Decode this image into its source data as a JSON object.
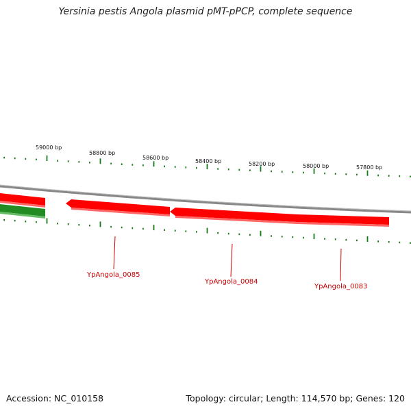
{
  "title": "Yersinia pestis Angola plasmid pMT-pPCP, complete sequence",
  "footer": {
    "accession": "Accession: NC_010158",
    "summary": "Topology: circular; Length: 114,570 bp; Genes: 120"
  },
  "colors": {
    "forward_strand": "#ff0000",
    "reverse_strand": "#228b22",
    "backbone": "#888888",
    "ticks": "#1a7a1a",
    "gene_label": "#cc0000"
  },
  "ruler_labels": [
    "59000 bp",
    "58800 bp",
    "58600 bp",
    "58400 bp",
    "58200 bp",
    "58000 bp",
    "57800 bp"
  ],
  "genes": [
    {
      "id": "YpAngola_0085",
      "strand": "forward"
    },
    {
      "id": "YpAngola_0084",
      "strand": "forward"
    },
    {
      "id": "YpAngola_0083",
      "strand": "forward"
    }
  ],
  "fragments": [
    {
      "strand": "forward"
    },
    {
      "strand": "reverse"
    }
  ]
}
